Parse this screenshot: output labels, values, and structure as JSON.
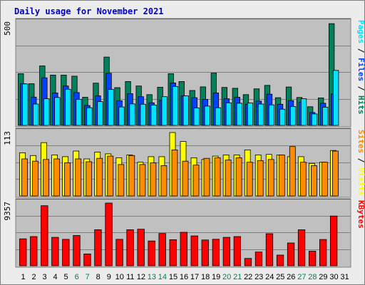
{
  "title": "Daily usage for November 2021",
  "colors": {
    "background": "#ececec",
    "frame_border": "#7f7f7f",
    "plot_bg": "#c0c0c0",
    "gridline": "#7f7f7f",
    "title": "#0000ce",
    "weekday_tick": "#000000",
    "weekend_tick": "#00805a",
    "hits": "#00805c",
    "files": "#0042ff",
    "pages": "#00e4ff",
    "visits": "#ffff00",
    "sites": "#ff8c00",
    "kbytes": "#ff0000",
    "separator": "#000000"
  },
  "chart_data": [
    {
      "type": "bar",
      "title": "Daily usage for November 2021",
      "ylabel_max": "500",
      "ylim": [
        0,
        500
      ],
      "grid": true,
      "categories": [
        "1",
        "2",
        "3",
        "4",
        "5",
        "6",
        "7",
        "8",
        "9",
        "10",
        "11",
        "12",
        "13",
        "14",
        "15",
        "16",
        "17",
        "18",
        "19",
        "20",
        "21",
        "22",
        "23",
        "24",
        "25",
        "26",
        "27",
        "28",
        "29",
        "30",
        "31"
      ],
      "weekend_days": [
        "6",
        "7",
        "13",
        "14",
        "20",
        "21",
        "27",
        "28"
      ],
      "right_label": [
        {
          "text": "Pages",
          "color_key": "pages"
        },
        {
          "text": " / ",
          "color_key": "separator"
        },
        {
          "text": "Files",
          "color_key": "files"
        },
        {
          "text": " / ",
          "color_key": "separator"
        },
        {
          "text": "Hits",
          "color_key": "hits"
        }
      ],
      "series": [
        {
          "name": "Hits",
          "color_key": "hits",
          "values": [
            252,
            203,
            290,
            245,
            245,
            240,
            137,
            206,
            333,
            184,
            214,
            192,
            150,
            186,
            252,
            214,
            170,
            188,
            255,
            185,
            181,
            150,
            178,
            195,
            135,
            187,
            136,
            91,
            134,
            496,
            null
          ]
        },
        {
          "name": "Files",
          "color_key": "files",
          "values": [
            203,
            138,
            232,
            158,
            192,
            160,
            97,
            144,
            254,
            120,
            155,
            140,
            110,
            122,
            207,
            144,
            135,
            127,
            158,
            130,
            137,
            103,
            118,
            152,
            103,
            121,
            113,
            63,
            108,
            153,
            null
          ]
        },
        {
          "name": "Pages",
          "color_key": "pages",
          "values": [
            202,
            104,
            130,
            136,
            176,
            127,
            86,
            116,
            175,
            90,
            105,
            103,
            99,
            140,
            190,
            144,
            85,
            94,
            86,
            110,
            108,
            109,
            104,
            100,
            79,
            92,
            130,
            56,
            89,
            268,
            null
          ]
        }
      ]
    },
    {
      "type": "bar",
      "ylabel_max": "113",
      "ylim": [
        0,
        113
      ],
      "grid": true,
      "categories": [
        "1",
        "2",
        "3",
        "4",
        "5",
        "6",
        "7",
        "8",
        "9",
        "10",
        "11",
        "12",
        "13",
        "14",
        "15",
        "16",
        "17",
        "18",
        "19",
        "20",
        "21",
        "22",
        "23",
        "24",
        "25",
        "26",
        "27",
        "28",
        "29",
        "30",
        "31"
      ],
      "right_label": [
        {
          "text": "Sites",
          "color_key": "sites"
        },
        {
          "text": " / ",
          "color_key": "separator"
        },
        {
          "text": "Visits",
          "color_key": "visits"
        }
      ],
      "series": [
        {
          "name": "Visits",
          "color_key": "visits",
          "values": [
            77,
            72,
            95,
            73,
            70,
            80,
            66,
            78,
            75,
            68,
            73,
            60,
            70,
            70,
            113,
            97,
            68,
            65,
            71,
            73,
            73,
            82,
            73,
            74,
            73,
            70,
            70,
            58,
            60,
            81,
            null
          ]
        },
        {
          "name": "Sites",
          "color_key": "sites",
          "values": [
            66,
            62,
            65,
            66,
            59,
            66,
            61,
            67,
            71,
            56,
            72,
            56,
            59,
            54,
            82,
            62,
            55,
            67,
            68,
            64,
            68,
            60,
            63,
            65,
            73,
            88,
            60,
            54,
            60,
            80,
            null
          ]
        }
      ]
    },
    {
      "type": "bar",
      "ylabel_max": "9357",
      "ylim": [
        0,
        9357
      ],
      "grid": true,
      "categories": [
        "1",
        "2",
        "3",
        "4",
        "5",
        "6",
        "7",
        "8",
        "9",
        "10",
        "11",
        "12",
        "13",
        "14",
        "15",
        "16",
        "17",
        "18",
        "19",
        "20",
        "21",
        "22",
        "23",
        "24",
        "25",
        "26",
        "27",
        "28",
        "29",
        "30",
        "31"
      ],
      "right_label": [
        {
          "text": "KBytes",
          "color_key": "kbytes"
        }
      ],
      "series": [
        {
          "name": "KBytes",
          "color_key": "kbytes",
          "values": [
            4020,
            4360,
            8960,
            4240,
            3940,
            4520,
            1770,
            5380,
            9357,
            3940,
            5380,
            5460,
            3700,
            4820,
            3890,
            5000,
            4450,
            3850,
            3960,
            4240,
            4360,
            1100,
            2050,
            4780,
            1600,
            3400,
            5370,
            2180,
            3920,
            7420,
            null
          ]
        }
      ]
    }
  ]
}
